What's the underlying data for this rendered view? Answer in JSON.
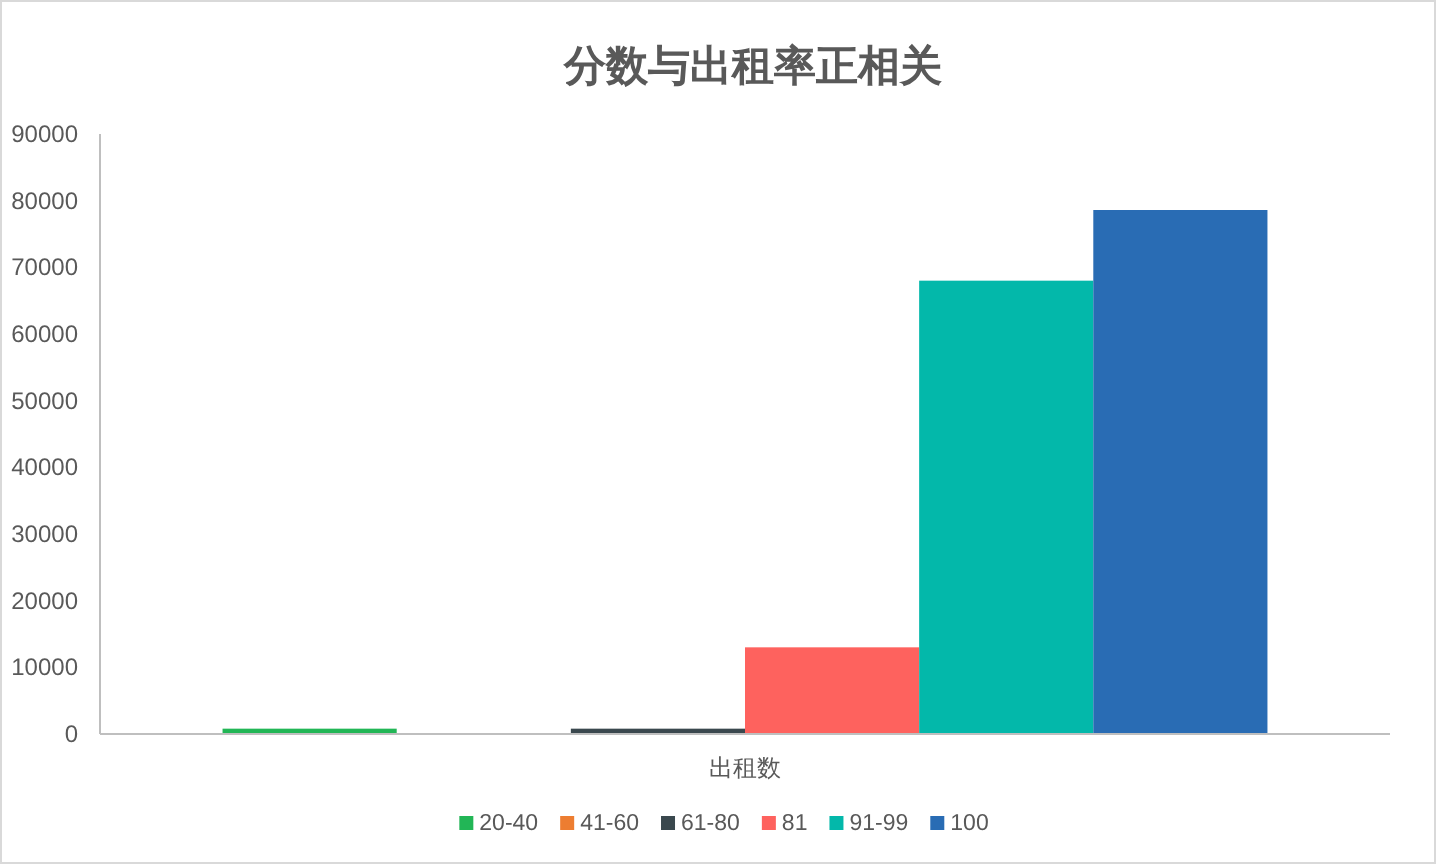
{
  "chart_data": {
    "type": "bar",
    "title": "分数与出租率正相关",
    "categories": [
      "出租数"
    ],
    "series": [
      {
        "name": "20-40",
        "color": "#22b656",
        "values": [
          800
        ]
      },
      {
        "name": "41-60",
        "color": "#ed7d31",
        "values": [
          0
        ]
      },
      {
        "name": "61-80",
        "color": "#3a484e",
        "values": [
          800
        ]
      },
      {
        "name": "81",
        "color": "#fe625e",
        "values": [
          13000
        ]
      },
      {
        "name": "91-99",
        "color": "#03b8aa",
        "values": [
          68000
        ]
      },
      {
        "name": "100",
        "color": "#296cb4",
        "values": [
          78600
        ]
      }
    ],
    "ylim": [
      0,
      90000
    ],
    "yticks": [
      0,
      10000,
      20000,
      30000,
      40000,
      50000,
      60000,
      70000,
      80000,
      90000
    ],
    "legend": "bottom"
  }
}
